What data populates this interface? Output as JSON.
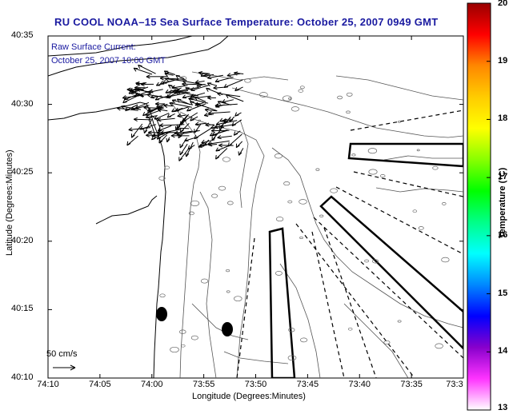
{
  "title": "RU COOL  NOAA–15  Sea Surface Temperature:  October 25, 2007 0949 GMT",
  "legend": {
    "line1": "Raw Surface Current:",
    "line2": "October 25, 2007 10:00 GMT"
  },
  "axes": {
    "ylabel": "Latitude (Degrees:Minutes)",
    "xlabel": "Longitude (Degrees:Minutes)",
    "yticks": [
      "40:35",
      "40:30",
      "40:25",
      "40:20",
      "40:15",
      "40:10"
    ],
    "xticks": [
      "74:10",
      "74:05",
      "74:00",
      "73:55",
      "73:50",
      "73:45",
      "73:40",
      "73:35",
      "73:3"
    ]
  },
  "scale_vector": {
    "label": "50 cm/s"
  },
  "colorbar": {
    "label": "Temperature (°C)",
    "ticks": [
      "20",
      "19",
      "18",
      "17",
      "16",
      "15",
      "14",
      "13"
    ],
    "colors": [
      "#ffffff",
      "#ff33ff",
      "#8800cc",
      "#0000ff",
      "#0088ff",
      "#00ffff",
      "#00ff88",
      "#00ff00",
      "#88ff00",
      "#ffff00",
      "#ffcc00",
      "#ff8800",
      "#ff0000",
      "#990000"
    ]
  },
  "map_style": {
    "coastline_color": "#000000",
    "bathymetry_color": "#555555",
    "frame_color": "#000000"
  }
}
